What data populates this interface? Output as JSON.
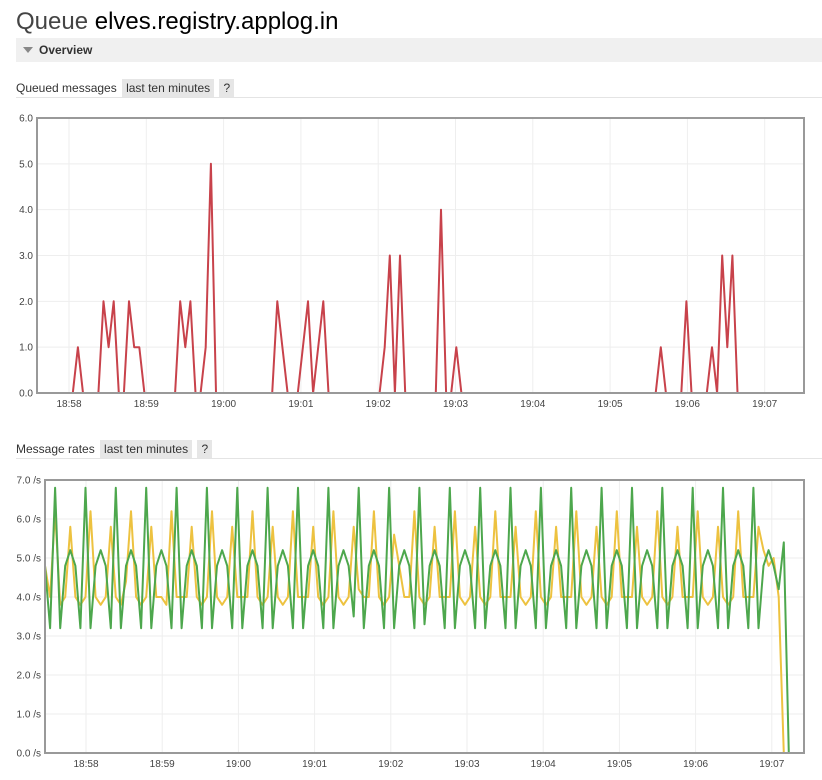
{
  "queue": {
    "prefix": "Queue",
    "name": "elves.registry.applog.in"
  },
  "overview": {
    "label": "Overview"
  },
  "queued_messages": {
    "title": "Queued messages",
    "range_label": "last ten minutes",
    "help_label": "?"
  },
  "message_rates": {
    "title": "Message rates",
    "range_label": "last ten minutes",
    "help_label": "?"
  },
  "icons": {
    "collapse": "triangle-down-icon"
  },
  "colors": {
    "ready": "#c8424b",
    "unacked": "#edc240",
    "publish": "#edc240",
    "deliver": "#4da74d",
    "ack": "#afd8f8",
    "flat": "#7d74c3"
  },
  "chart_data": [
    {
      "type": "line",
      "x_ticks": [
        "18:58",
        "18:59",
        "19:00",
        "19:01",
        "19:02",
        "19:03",
        "19:04",
        "19:05",
        "19:06",
        "19:07"
      ],
      "y_ticks": [
        "0.0",
        "1.0",
        "2.0",
        "3.0",
        "4.0",
        "5.0",
        "6.0"
      ],
      "ylim": [
        0,
        6
      ],
      "xlim": [
        0,
        150
      ],
      "grid": true,
      "series": [
        {
          "values": [
            0,
            0,
            0,
            0,
            0,
            0,
            0,
            0,
            1,
            0,
            0,
            0,
            0,
            2,
            1,
            2,
            0,
            0,
            2,
            1,
            1,
            0,
            0,
            0,
            0,
            0,
            0,
            0,
            2,
            1,
            2,
            0,
            0,
            1,
            5,
            0,
            0,
            0,
            0,
            0,
            0,
            0,
            0,
            0,
            0,
            0,
            0,
            2,
            1,
            0,
            0,
            0,
            1,
            2,
            0,
            1,
            2,
            0,
            0,
            0,
            0,
            0,
            0,
            0,
            0,
            0,
            0,
            0,
            1,
            3,
            0,
            3,
            0,
            0,
            0,
            0,
            0,
            0,
            0,
            4,
            0,
            0,
            1,
            0,
            0,
            0,
            0,
            0,
            0,
            0,
            0,
            0,
            0,
            0,
            0,
            0,
            0,
            0,
            0,
            0,
            0,
            0,
            0,
            0,
            0,
            0,
            0,
            0,
            0,
            0,
            0,
            0,
            0,
            0,
            0,
            0,
            0,
            0,
            0,
            0,
            0,
            0,
            1,
            0,
            0,
            0,
            0,
            2,
            0,
            0,
            0,
            0,
            1,
            0,
            3,
            1,
            3,
            0,
            0,
            0,
            0,
            0,
            0,
            0,
            0,
            0,
            0,
            0,
            0,
            0,
            0
          ]
        },
        {
          "values": [
            0,
            0,
            0,
            0,
            0,
            0,
            0,
            0,
            0,
            0,
            0,
            0,
            0,
            0,
            0,
            0,
            0,
            0,
            0,
            0,
            0,
            0,
            0,
            0,
            0,
            0,
            0,
            0,
            0,
            0,
            0,
            0,
            0,
            0,
            0,
            0,
            0,
            0,
            0,
            0,
            0,
            0,
            0,
            0,
            0,
            0,
            0,
            0,
            0,
            0,
            0,
            0,
            0,
            0,
            0,
            0,
            0,
            0,
            0,
            0,
            0,
            0,
            0,
            0,
            0,
            0,
            0,
            0,
            0,
            0,
            0,
            0,
            0,
            0,
            0,
            0,
            0,
            0,
            0,
            0,
            0,
            0,
            0,
            0,
            0,
            0,
            0,
            0,
            0,
            0,
            0,
            0,
            0,
            0,
            0,
            0,
            0,
            0,
            0,
            0,
            0,
            0,
            0,
            0,
            0,
            0,
            0,
            0,
            0,
            0,
            0,
            0,
            0,
            0,
            0,
            0,
            0,
            0,
            0,
            0,
            0,
            0,
            0,
            0,
            0,
            0,
            0,
            0,
            0,
            0,
            0,
            0,
            0,
            0,
            0,
            0,
            0,
            0,
            0,
            0,
            0,
            0,
            0,
            0,
            0,
            0,
            0,
            0,
            0,
            0,
            0
          ]
        }
      ]
    },
    {
      "type": "line",
      "x_ticks": [
        "18:58",
        "18:59",
        "19:00",
        "19:01",
        "19:02",
        "19:03",
        "19:04",
        "19:05",
        "19:06",
        "19:07"
      ],
      "y_ticks": [
        "0.0 /s",
        "1.0 /s",
        "2.0 /s",
        "3.0 /s",
        "4.0 /s",
        "5.0 /s",
        "6.0 /s",
        "7.0 /s"
      ],
      "ylim": [
        0,
        7
      ],
      "xlim": [
        0,
        150
      ],
      "grid": true,
      "series": [
        {
          "values": [
            4.8,
            4.0,
            6.2,
            3.8,
            4.0,
            5.8,
            4.0,
            3.8,
            4.0,
            6.2,
            4.0,
            3.8,
            4.0,
            5.8,
            4.0,
            3.8,
            4.4,
            6.2,
            4.0,
            3.8,
            4.0,
            5.8,
            4.0,
            4.0,
            3.8,
            6.2,
            4.0,
            4.0,
            4.0,
            5.8,
            4.0,
            3.8,
            4.0,
            6.2,
            4.0,
            3.8,
            4.0,
            5.8,
            4.0,
            4.0,
            4.0,
            6.2,
            4.0,
            3.8,
            4.0,
            5.8,
            4.0,
            3.8,
            4.0,
            6.2,
            4.0,
            4.0,
            4.0,
            5.8,
            4.0,
            3.8,
            4.0,
            6.2,
            4.0,
            3.8,
            4.0,
            5.8,
            4.2,
            4.0,
            4.0,
            6.2,
            4.0,
            3.8,
            4.0,
            5.6,
            4.8,
            4.0,
            4.0,
            6.2,
            4.0,
            3.8,
            4.0,
            5.8,
            4.0,
            4.0,
            4.0,
            6.2,
            4.0,
            3.8,
            4.0,
            5.8,
            4.0,
            3.8,
            4.0,
            6.2,
            4.0,
            4.0,
            4.0,
            5.8,
            4.0,
            3.8,
            4.0,
            6.2,
            4.0,
            3.8,
            4.0,
            5.8,
            4.0,
            4.0,
            4.0,
            6.2,
            4.0,
            3.8,
            4.0,
            5.8,
            4.0,
            3.8,
            4.0,
            6.2,
            4.0,
            4.0,
            4.0,
            5.8,
            4.0,
            3.8,
            4.0,
            6.2,
            4.0,
            3.8,
            4.0,
            5.8,
            4.0,
            4.0,
            4.0,
            6.2,
            4.0,
            3.8,
            4.0,
            5.8,
            4.0,
            3.8,
            4.0,
            6.2,
            4.0,
            4.0,
            4.0,
            5.8,
            5.2,
            4.8,
            5.0,
            4.0,
            0.0
          ]
        },
        {
          "values": [
            4.8,
            3.2,
            6.8,
            3.2,
            4.8,
            5.2,
            4.8,
            3.2,
            6.8,
            3.2,
            4.8,
            5.2,
            4.8,
            3.2,
            6.8,
            3.2,
            4.8,
            5.2,
            4.8,
            3.2,
            6.8,
            3.2,
            4.8,
            5.2,
            4.8,
            3.2,
            6.8,
            3.2,
            4.8,
            5.2,
            4.8,
            3.2,
            6.8,
            3.2,
            4.8,
            5.2,
            4.8,
            3.2,
            6.8,
            3.2,
            4.8,
            5.2,
            4.8,
            3.2,
            6.8,
            3.2,
            4.8,
            5.2,
            4.8,
            3.2,
            6.8,
            3.2,
            4.8,
            5.2,
            4.8,
            3.2,
            6.8,
            3.2,
            4.8,
            5.2,
            4.8,
            3.5,
            6.8,
            3.2,
            4.8,
            5.2,
            4.8,
            3.2,
            6.8,
            3.2,
            4.8,
            5.2,
            4.8,
            3.2,
            6.8,
            3.3,
            4.8,
            5.2,
            4.8,
            3.2,
            6.8,
            3.2,
            4.8,
            5.2,
            4.8,
            3.2,
            6.8,
            3.2,
            4.8,
            5.2,
            4.8,
            3.2,
            6.8,
            3.2,
            4.8,
            5.2,
            4.8,
            3.2,
            6.8,
            3.2,
            4.8,
            5.2,
            4.8,
            3.2,
            6.8,
            3.2,
            4.8,
            5.2,
            4.8,
            3.2,
            6.8,
            3.2,
            4.8,
            5.2,
            4.8,
            3.2,
            6.8,
            3.2,
            4.8,
            5.2,
            4.8,
            3.2,
            6.8,
            3.2,
            4.8,
            5.2,
            4.8,
            3.2,
            6.8,
            3.2,
            4.8,
            5.2,
            4.8,
            3.2,
            6.8,
            3.2,
            4.8,
            5.2,
            4.8,
            3.2,
            6.8,
            3.2,
            4.8,
            5.2,
            4.8,
            4.2,
            5.4,
            0.0
          ]
        },
        {
          "values": [
            0,
            0,
            0,
            0,
            0,
            0,
            0,
            0,
            0,
            0,
            0,
            0,
            0,
            0,
            0,
            0,
            0,
            0,
            0,
            0,
            0,
            0,
            0,
            0,
            0,
            0,
            0,
            0,
            0,
            0,
            0,
            0,
            0,
            0,
            0,
            0,
            0,
            0,
            0,
            0,
            0,
            0,
            0,
            0,
            0,
            0,
            0,
            0,
            0,
            0,
            0,
            0,
            0,
            0,
            0,
            0,
            0,
            0,
            0,
            0,
            0,
            0,
            0,
            0,
            0,
            0,
            0,
            0,
            0,
            0,
            0,
            0,
            0,
            0,
            0,
            0,
            0,
            0,
            0,
            0,
            0,
            0,
            0,
            0,
            0,
            0,
            0,
            0,
            0,
            0,
            0,
            0,
            0,
            0,
            0,
            0,
            0,
            0,
            0,
            0,
            0,
            0,
            0,
            0,
            0,
            0,
            0,
            0,
            0,
            0,
            0,
            0,
            0,
            0,
            0,
            0,
            0,
            0,
            0,
            0,
            0,
            0,
            0,
            0,
            0,
            0,
            0,
            0,
            0,
            0,
            0,
            0,
            0,
            0,
            0,
            0,
            0,
            0,
            0,
            0,
            0,
            0,
            0,
            0,
            0,
            0,
            0,
            0,
            0,
            0,
            0
          ]
        }
      ]
    }
  ]
}
